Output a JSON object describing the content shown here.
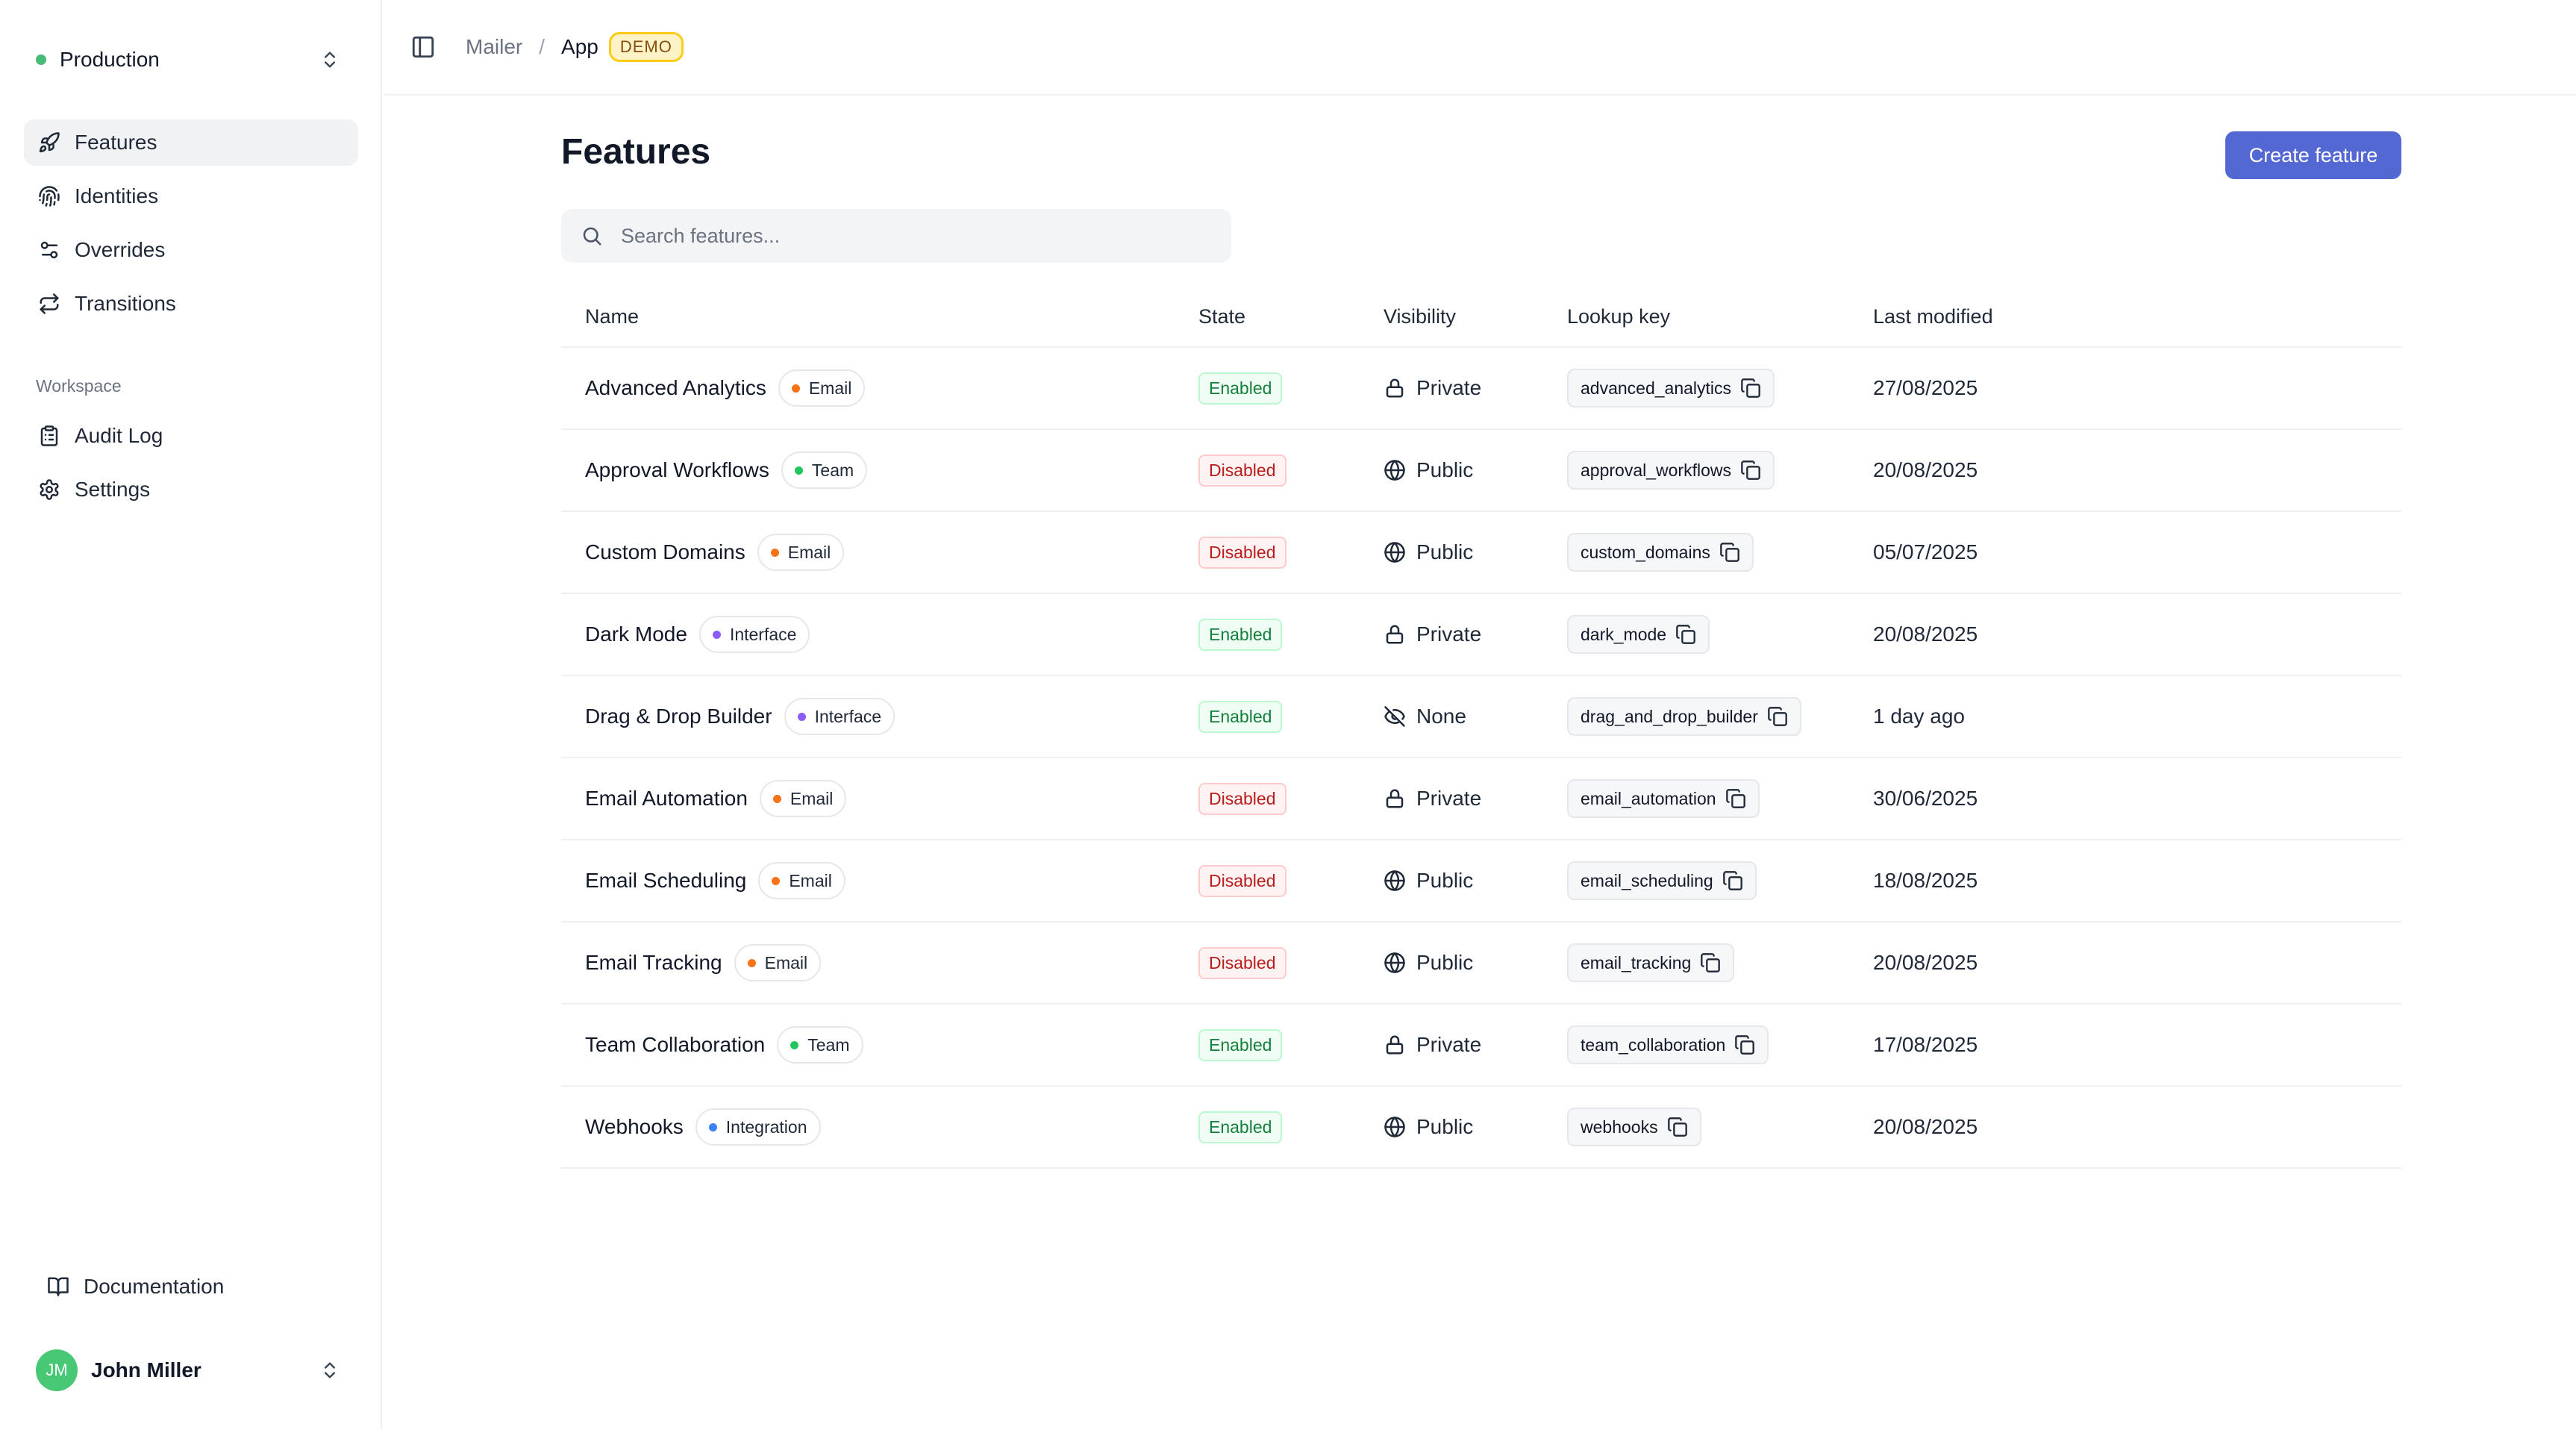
{
  "sidebar": {
    "environment": {
      "label": "Production",
      "dot_color": "#48bb78"
    },
    "main_nav": [
      {
        "label": "Features",
        "icon": "rocket-icon",
        "active": true
      },
      {
        "label": "Identities",
        "icon": "fingerprint-icon",
        "active": false
      },
      {
        "label": "Overrides",
        "icon": "sliders-icon",
        "active": false
      },
      {
        "label": "Transitions",
        "icon": "arrows-repeat-icon",
        "active": false
      }
    ],
    "workspace_label": "Workspace",
    "workspace_nav": [
      {
        "label": "Audit Log",
        "icon": "clipboard-icon"
      },
      {
        "label": "Settings",
        "icon": "gear-icon"
      }
    ],
    "documentation_label": "Documentation",
    "user": {
      "initials": "JM",
      "name": "John Miller",
      "avatar_color": "#48c774"
    }
  },
  "topbar": {
    "breadcrumb": [
      "Mailer",
      "App"
    ],
    "badge": "DEMO"
  },
  "main": {
    "title": "Features",
    "create_button": "Create feature",
    "search_placeholder": "Search features...",
    "columns": [
      "Name",
      "State",
      "Visibility",
      "Lookup key",
      "Last modified"
    ],
    "accent_color": "#5468d4",
    "category_colors": {
      "Email": "#f97316",
      "Team": "#22c55e",
      "Interface": "#8b5cf6",
      "Integration": "#3b82f6"
    },
    "rows": [
      {
        "name": "Advanced Analytics",
        "category": "Email",
        "state": "Enabled",
        "visibility": "Private",
        "visibility_icon": "lock-icon",
        "key": "advanced_analytics",
        "modified": "27/08/2025"
      },
      {
        "name": "Approval Workflows",
        "category": "Team",
        "state": "Disabled",
        "visibility": "Public",
        "visibility_icon": "globe-icon",
        "key": "approval_workflows",
        "modified": "20/08/2025"
      },
      {
        "name": "Custom Domains",
        "category": "Email",
        "state": "Disabled",
        "visibility": "Public",
        "visibility_icon": "globe-icon",
        "key": "custom_domains",
        "modified": "05/07/2025"
      },
      {
        "name": "Dark Mode",
        "category": "Interface",
        "state": "Enabled",
        "visibility": "Private",
        "visibility_icon": "lock-icon",
        "key": "dark_mode",
        "modified": "20/08/2025"
      },
      {
        "name": "Drag & Drop Builder",
        "category": "Interface",
        "state": "Enabled",
        "visibility": "None",
        "visibility_icon": "eye-off-icon",
        "key": "drag_and_drop_builder",
        "modified": "1 day ago"
      },
      {
        "name": "Email Automation",
        "category": "Email",
        "state": "Disabled",
        "visibility": "Private",
        "visibility_icon": "lock-icon",
        "key": "email_automation",
        "modified": "30/06/2025"
      },
      {
        "name": "Email Scheduling",
        "category": "Email",
        "state": "Disabled",
        "visibility": "Public",
        "visibility_icon": "globe-icon",
        "key": "email_scheduling",
        "modified": "18/08/2025"
      },
      {
        "name": "Email Tracking",
        "category": "Email",
        "state": "Disabled",
        "visibility": "Public",
        "visibility_icon": "globe-icon",
        "key": "email_tracking",
        "modified": "20/08/2025"
      },
      {
        "name": "Team Collaboration",
        "category": "Team",
        "state": "Enabled",
        "visibility": "Private",
        "visibility_icon": "lock-icon",
        "key": "team_collaboration",
        "modified": "17/08/2025"
      },
      {
        "name": "Webhooks",
        "category": "Integration",
        "state": "Enabled",
        "visibility": "Public",
        "visibility_icon": "globe-icon",
        "key": "webhooks",
        "modified": "20/08/2025"
      }
    ]
  }
}
